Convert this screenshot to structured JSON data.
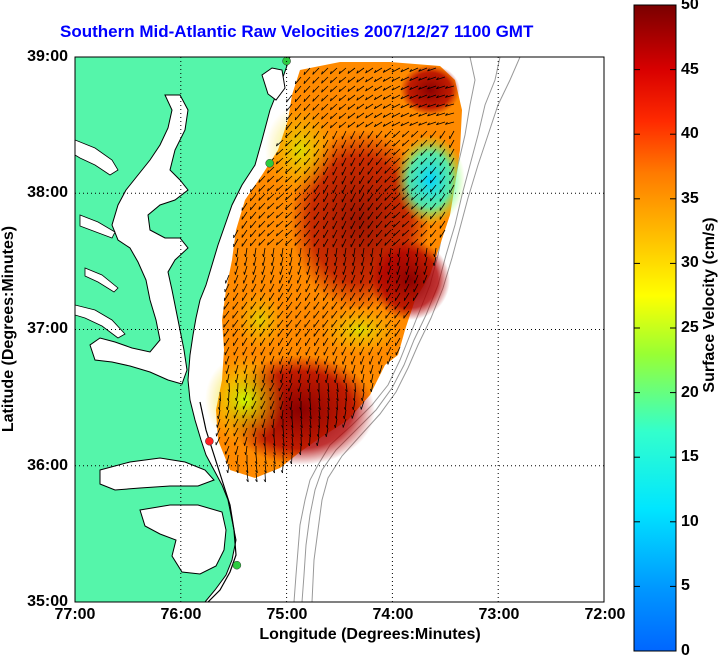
{
  "title": "Southern Mid-Atlantic Raw Velocities 2007/12/27 1100 GMT",
  "xaxis": {
    "label": "Longitude (Degrees:Minutes)",
    "ticks": [
      "77:00",
      "76:00",
      "75:00",
      "74:00",
      "73:00",
      "72:00"
    ]
  },
  "yaxis": {
    "label": "Latitude (Degrees:Minutes)",
    "ticks": [
      "39:00",
      "38:00",
      "37:00",
      "36:00",
      "35:00"
    ]
  },
  "colorbar": {
    "label": "Surface Velocity (cm/s)",
    "ticks": [
      "50",
      "45",
      "40",
      "35",
      "30",
      "25",
      "20",
      "15",
      "10",
      "5",
      "0"
    ],
    "min": 0,
    "max": 50
  },
  "colors": {
    "land": "#55f5aa",
    "title": "#0000ff",
    "grid": "#000000"
  },
  "map": {
    "lon_range": [
      -77,
      -72
    ],
    "lat_range": [
      35,
      39
    ],
    "grid": true,
    "stations": [
      {
        "lon": -75.0,
        "lat": 38.97,
        "color": "#2ecc40"
      },
      {
        "lon": -75.16,
        "lat": 38.22,
        "color": "#2ecc40"
      },
      {
        "lon": -75.73,
        "lat": 36.18,
        "color": "#ff2020"
      },
      {
        "lon": -75.47,
        "lat": 35.27,
        "color": "#2ecc40"
      }
    ]
  }
}
